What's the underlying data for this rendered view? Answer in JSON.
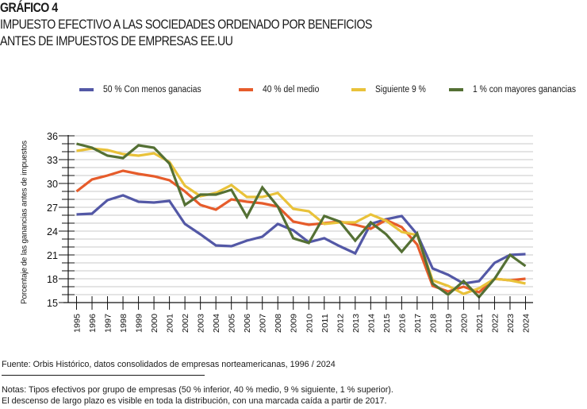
{
  "header": {
    "label": "GRÁFICO 4",
    "title_line1": "IMPUESTO EFECTIVO A LAS SOCIEDADES ORDENADO POR BENEFICIOS",
    "title_line2": "ANTES DE IMPUESTOS DE EMPRESAS EE.UU"
  },
  "footer": {
    "source": "Fuente: Orbis Histórico, datos consolidados de empresas norteamericanas, 1996 / 2024",
    "notes_line1": "Notas: Tipos efectivos por grupo de empresas (50 % inferior, 40 % medio, 9 % siguiente, 1 % superior).",
    "notes_line2": "El descenso de largo plazo es visible en toda la distribución, con una marcada caída a partir de 2017."
  },
  "chart_data": {
    "type": "line",
    "title": "IMPUESTO EFECTIVO A LAS SOCIEDADES ORDENADO POR BENEFICIOS ANTES DE IMPUESTOS DE EMPRESAS EE.UU",
    "xlabel": "",
    "ylabel": "Porcentaje de las ganancias antes de impuestos",
    "ylim": [
      15,
      36
    ],
    "yticks": [
      "15",
      "18",
      "21",
      "24",
      "27",
      "30",
      "33",
      "36"
    ],
    "grid": true,
    "legend_position": "top",
    "categories": [
      "1995",
      "1996",
      "1997",
      "1998",
      "1999",
      "2000",
      "2001",
      "2002",
      "2003",
      "2004",
      "2005",
      "2006",
      "2007",
      "2008",
      "2009",
      "2010",
      "2011",
      "2012",
      "2013",
      "2014",
      "2015",
      "2016",
      "2017",
      "2018",
      "2019",
      "2020",
      "2021",
      "2022",
      "2023",
      "2024"
    ],
    "series": [
      {
        "name": "50 % Con menos ganacias",
        "color": "#5358a6",
        "values": [
          26.1,
          26.2,
          27.9,
          28.5,
          27.7,
          27.6,
          27.8,
          24.9,
          23.6,
          22.2,
          22.1,
          22.8,
          23.3,
          24.9,
          24.1,
          22.6,
          23.1,
          22.1,
          21.2,
          24.9,
          25.5,
          25.9,
          23.6,
          19.3,
          18.5,
          17.4,
          17.7,
          20.0,
          21.0,
          21.1
        ]
      },
      {
        "name": "40 % del medio",
        "color": "#e65c2b",
        "values": [
          29.0,
          30.5,
          31.0,
          31.6,
          31.2,
          30.9,
          30.4,
          29.0,
          27.3,
          26.7,
          28.0,
          27.7,
          27.5,
          27.1,
          25.2,
          24.8,
          25.0,
          25.2,
          24.8,
          24.3,
          25.4,
          24.5,
          22.3,
          17.1,
          16.4,
          17.0,
          16.3,
          18.0,
          17.8,
          18.0
        ]
      },
      {
        "name": "Siguiente 9 %",
        "color": "#e9c23a",
        "values": [
          34.1,
          34.4,
          34.2,
          33.7,
          33.5,
          33.8,
          32.7,
          29.7,
          28.4,
          28.8,
          29.8,
          28.3,
          28.3,
          28.8,
          26.8,
          26.5,
          24.9,
          25.1,
          25.1,
          26.1,
          25.3,
          23.9,
          23.5,
          17.8,
          17.1,
          16.1,
          16.8,
          18.0,
          17.8,
          17.4
        ]
      },
      {
        "name": "1 % con mayores ganancias",
        "color": "#547034",
        "values": [
          35.0,
          34.5,
          33.5,
          33.2,
          34.8,
          34.5,
          32.5,
          27.3,
          28.6,
          28.6,
          29.2,
          25.8,
          29.5,
          27.1,
          23.1,
          22.5,
          25.9,
          25.2,
          22.8,
          25.1,
          23.6,
          21.4,
          23.7,
          17.4,
          16.0,
          17.7,
          15.7,
          18.0,
          21.0,
          19.6
        ]
      }
    ]
  }
}
